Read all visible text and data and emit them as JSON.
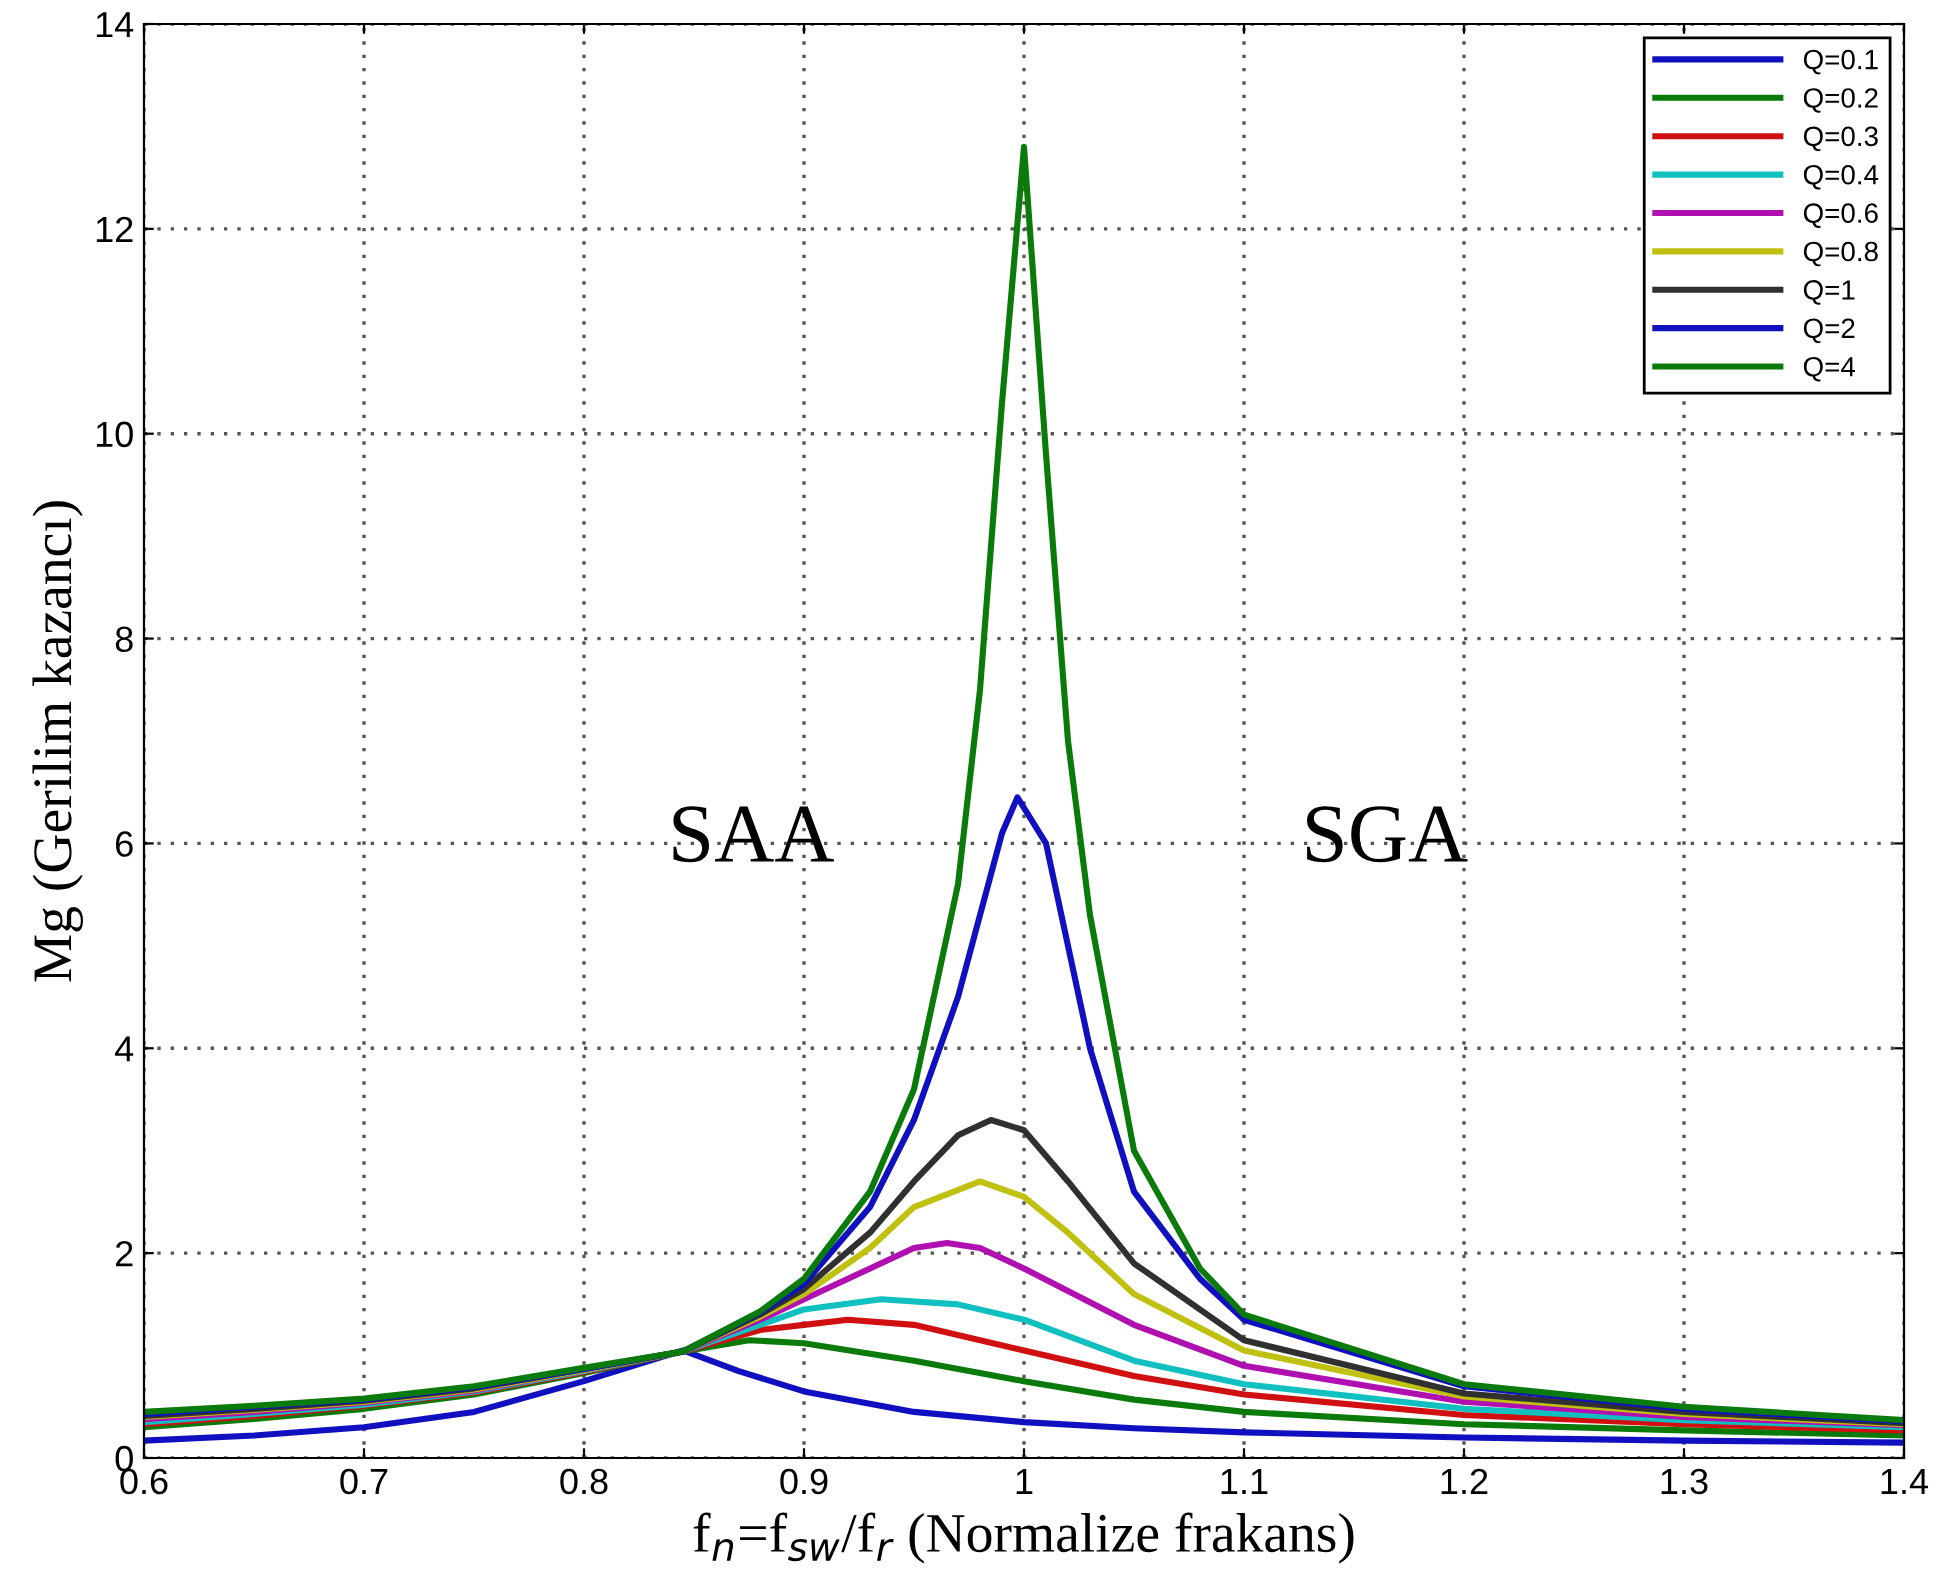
{
  "chart_data": {
    "type": "line",
    "xlabel": "f$_{n}$=f$_{sw}$/f$_{r}$ (Normalize frakans)",
    "ylabel": "Mg (Gerilim kazancı)",
    "annotations": [
      "SAA",
      "SGA"
    ],
    "xlim": [
      0.6,
      1.4
    ],
    "xticks": [
      0.6,
      0.7,
      0.8,
      0.9,
      1,
      1.1,
      1.2,
      1.3,
      1.4
    ],
    "ylim": [
      0,
      14
    ],
    "yticks": [
      0,
      2,
      4,
      6,
      8,
      10,
      12,
      14
    ],
    "grid": true,
    "legend": "top right",
    "line_style": "solid",
    "marker": "none",
    "series": [
      {
        "name": "Q=0.1",
        "color": "#1010c0",
        "x": [
          0.6,
          0.65,
          0.7,
          0.75,
          0.8,
          0.845,
          0.87,
          0.9,
          0.95,
          1.0,
          1.05,
          1.1,
          1.2,
          1.3,
          1.4
        ],
        "values": [
          0.17,
          0.22,
          0.3,
          0.45,
          0.75,
          1.05,
          0.85,
          0.65,
          0.45,
          0.35,
          0.29,
          0.25,
          0.2,
          0.17,
          0.15
        ]
      },
      {
        "name": "Q=0.2",
        "color": "#0a7a0a",
        "x": [
          0.6,
          0.65,
          0.7,
          0.75,
          0.8,
          0.845,
          0.875,
          0.9,
          0.95,
          1.0,
          1.05,
          1.1,
          1.2,
          1.3,
          1.4
        ],
        "values": [
          0.3,
          0.38,
          0.48,
          0.62,
          0.83,
          1.04,
          1.15,
          1.12,
          0.95,
          0.75,
          0.57,
          0.45,
          0.33,
          0.27,
          0.22
        ]
      },
      {
        "name": "Q=0.3",
        "color": "#d01010",
        "x": [
          0.6,
          0.65,
          0.7,
          0.75,
          0.8,
          0.845,
          0.88,
          0.9,
          0.92,
          0.95,
          1.0,
          1.05,
          1.1,
          1.2,
          1.3,
          1.4
        ],
        "values": [
          0.33,
          0.41,
          0.51,
          0.64,
          0.84,
          1.04,
          1.25,
          1.3,
          1.35,
          1.3,
          1.05,
          0.8,
          0.62,
          0.42,
          0.33,
          0.27
        ]
      },
      {
        "name": "Q=0.4",
        "color": "#10c0c0",
        "x": [
          0.6,
          0.65,
          0.7,
          0.75,
          0.8,
          0.845,
          0.88,
          0.9,
          0.935,
          0.97,
          1.0,
          1.05,
          1.1,
          1.2,
          1.3,
          1.4
        ],
        "values": [
          0.35,
          0.43,
          0.52,
          0.65,
          0.85,
          1.04,
          1.3,
          1.45,
          1.55,
          1.5,
          1.35,
          0.95,
          0.72,
          0.48,
          0.37,
          0.3
        ]
      },
      {
        "name": "Q=0.6",
        "color": "#b010b0",
        "x": [
          0.6,
          0.65,
          0.7,
          0.75,
          0.8,
          0.845,
          0.88,
          0.9,
          0.93,
          0.95,
          0.965,
          0.98,
          1.0,
          1.05,
          1.1,
          1.2,
          1.3,
          1.4
        ],
        "values": [
          0.38,
          0.45,
          0.54,
          0.66,
          0.86,
          1.04,
          1.35,
          1.55,
          1.85,
          2.05,
          2.1,
          2.05,
          1.85,
          1.3,
          0.9,
          0.55,
          0.4,
          0.32
        ]
      },
      {
        "name": "Q=0.8",
        "color": "#c0c010",
        "x": [
          0.6,
          0.65,
          0.7,
          0.75,
          0.8,
          0.845,
          0.88,
          0.9,
          0.93,
          0.95,
          0.98,
          1.0,
          1.02,
          1.05,
          1.1,
          1.2,
          1.3,
          1.4
        ],
        "values": [
          0.4,
          0.47,
          0.55,
          0.67,
          0.86,
          1.04,
          1.38,
          1.6,
          2.05,
          2.45,
          2.7,
          2.55,
          2.2,
          1.6,
          1.05,
          0.6,
          0.43,
          0.33
        ]
      },
      {
        "name": "Q=1",
        "color": "#303030",
        "x": [
          0.6,
          0.65,
          0.7,
          0.75,
          0.8,
          0.845,
          0.88,
          0.9,
          0.93,
          0.95,
          0.97,
          0.985,
          1.0,
          1.02,
          1.05,
          1.1,
          1.2,
          1.3,
          1.4
        ],
        "values": [
          0.41,
          0.48,
          0.56,
          0.68,
          0.87,
          1.04,
          1.4,
          1.65,
          2.2,
          2.7,
          3.15,
          3.3,
          3.2,
          2.7,
          1.9,
          1.15,
          0.63,
          0.45,
          0.34
        ]
      },
      {
        "name": "Q=2",
        "color": "#1010c0",
        "x": [
          0.6,
          0.65,
          0.7,
          0.75,
          0.8,
          0.845,
          0.88,
          0.9,
          0.93,
          0.95,
          0.97,
          0.99,
          0.997,
          1.01,
          1.02,
          1.03,
          1.05,
          1.08,
          1.1,
          1.2,
          1.3,
          1.4
        ],
        "values": [
          0.43,
          0.5,
          0.57,
          0.69,
          0.87,
          1.04,
          1.42,
          1.7,
          2.45,
          3.3,
          4.5,
          6.1,
          6.45,
          6.0,
          5.0,
          4.0,
          2.6,
          1.75,
          1.35,
          0.7,
          0.48,
          0.36
        ]
      },
      {
        "name": "Q=4",
        "color": "#0a7a0a",
        "x": [
          0.6,
          0.65,
          0.7,
          0.75,
          0.8,
          0.845,
          0.88,
          0.9,
          0.93,
          0.95,
          0.97,
          0.98,
          0.99,
          1.0,
          1.01,
          1.02,
          1.03,
          1.05,
          1.08,
          1.1,
          1.2,
          1.3,
          1.4
        ],
        "values": [
          0.45,
          0.51,
          0.58,
          0.7,
          0.88,
          1.04,
          1.43,
          1.75,
          2.6,
          3.6,
          5.6,
          7.5,
          10.3,
          12.8,
          9.8,
          7.0,
          5.3,
          3.0,
          1.85,
          1.4,
          0.72,
          0.5,
          0.37
        ]
      }
    ]
  }
}
